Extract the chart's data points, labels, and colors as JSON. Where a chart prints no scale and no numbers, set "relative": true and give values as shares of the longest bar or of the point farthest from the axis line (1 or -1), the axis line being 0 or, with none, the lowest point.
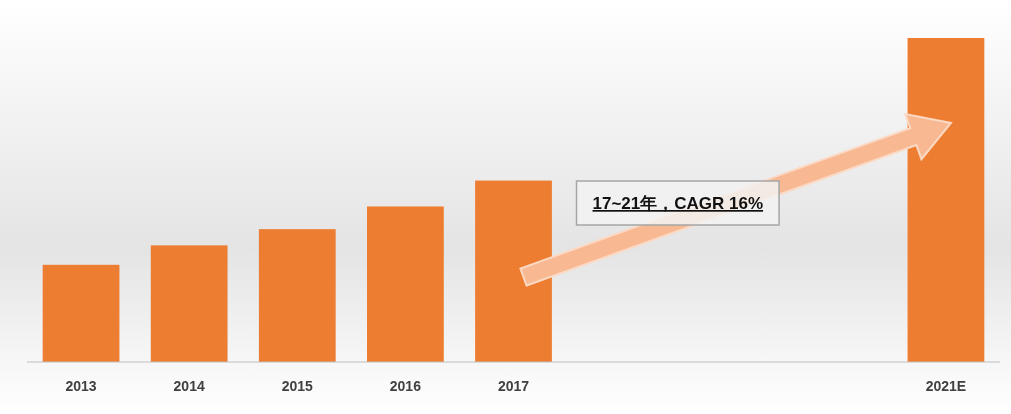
{
  "chart_data": {
    "type": "bar",
    "relative": true,
    "categories": [
      "2013",
      "2014",
      "2015",
      "2016",
      "2017",
      null,
      null,
      null,
      "2021E"
    ],
    "values": [
      0.3,
      0.36,
      0.41,
      0.48,
      0.56,
      null,
      null,
      null,
      1
    ],
    "color": "#ed7d31",
    "annotations": [
      "17~21年，CAGR 16%"
    ]
  }
}
